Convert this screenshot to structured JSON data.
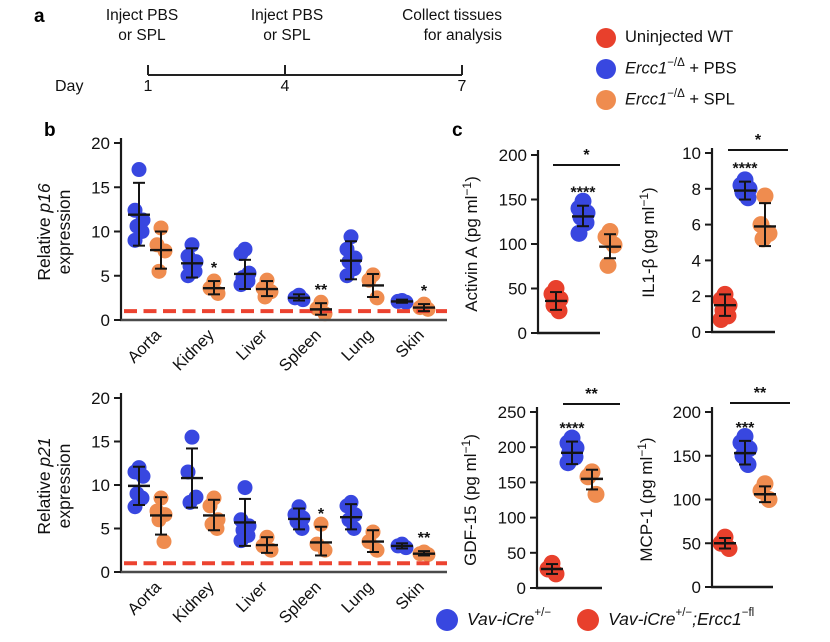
{
  "palette": {
    "red": "#E8402C",
    "blue": "#3847E0",
    "orange": "#EF8C4F",
    "dashed": "#EC4330",
    "axis": "#1a1a1a",
    "error_bar": "#141414"
  },
  "panel_a": {
    "label": "a",
    "events": [
      {
        "line1": "Inject PBS",
        "line2": "or SPL"
      },
      {
        "line1": "Inject PBS",
        "line2": "or SPL"
      },
      {
        "line1": "Collect tissues",
        "line2": "for analysis"
      }
    ],
    "day_label": "Day",
    "days": [
      "1",
      "4",
      "7"
    ]
  },
  "panel_b_label": "b",
  "panel_c_label": "c",
  "legend_top": {
    "items": [
      {
        "color": "red",
        "text": "Uninjected WT"
      },
      {
        "color": "blue",
        "italic": "Ercc1",
        "sup": "−/Δ",
        "rest": " + PBS"
      },
      {
        "color": "orange",
        "italic": "Ercc1",
        "sup": "−/Δ",
        "rest": " + SPL"
      }
    ]
  },
  "legend_bottom": {
    "items": [
      {
        "color": "blue",
        "italic": "Vav-iCre",
        "sup": "+/−",
        "mid": "",
        "italic2": "",
        "sup2": ""
      },
      {
        "color": "red",
        "italic": "Vav-iCre",
        "sup": "+/−",
        "mid": ";",
        "italic2": "Ercc1",
        "sup2": "−fl"
      }
    ]
  },
  "chart_data": [
    {
      "id": "p16",
      "type": "scatter",
      "ylabel": {
        "plain": "Relative ",
        "italic": "p16",
        "line2": "expression"
      },
      "ylim": [
        0,
        20
      ],
      "yticks": [
        0,
        5,
        10,
        15,
        20
      ],
      "baseline": 1,
      "categories": [
        "Aorta",
        "Kidney",
        "Liver",
        "Spleen",
        "Lung",
        "Skin"
      ],
      "series": [
        {
          "name": "Ercc1−/Δ + PBS",
          "color": "blue",
          "data": [
            {
              "values": [
                17,
                12.4,
                11.3,
                10.6,
                10,
                9
              ],
              "mean": 11.9,
              "lo": 8.4,
              "hi": 15.5,
              "sig": ""
            },
            {
              "values": [
                8.5,
                7.2,
                6.6,
                6.1,
                5.5,
                5
              ],
              "mean": 6.4,
              "lo": 4.8,
              "hi": 8.1,
              "sig": ""
            },
            {
              "values": [
                8,
                7.5,
                5.3,
                4.8,
                4.4,
                4
              ],
              "mean": 5.2,
              "lo": 3.5,
              "hi": 6.8,
              "sig": ""
            },
            {
              "values": [
                2.8,
                2.5,
                2.3
              ],
              "mean": 2.5,
              "lo": 2.2,
              "hi": 2.9,
              "sig": ""
            },
            {
              "values": [
                9.4,
                8,
                7,
                6.6,
                5.8,
                5
              ],
              "mean": 6.7,
              "lo": 4.6,
              "hi": 8.9,
              "sig": ""
            },
            {
              "values": [
                2.2,
                2.1,
                2.0
              ],
              "mean": 2.1,
              "lo": 1.95,
              "hi": 2.3,
              "sig": ""
            }
          ]
        },
        {
          "name": "Ercc1−/Δ + SPL",
          "color": "orange",
          "data": [
            {
              "values": [
                10.4,
                8.5,
                7.8,
                5.5
              ],
              "mean": 7.9,
              "lo": 5.8,
              "hi": 10,
              "sig": ""
            },
            {
              "values": [
                4.4,
                3.6,
                3.0
              ],
              "mean": 3.6,
              "lo": 2.9,
              "hi": 4.4,
              "sig": "*"
            },
            {
              "values": [
                4.5,
                3.6,
                3.2,
                2.6
              ],
              "mean": 3.5,
              "lo": 2.7,
              "hi": 4.4,
              "sig": ""
            },
            {
              "values": [
                2.0,
                1.3,
                0.7
              ],
              "mean": 1.2,
              "lo": 0.6,
              "hi": 1.9,
              "sig": "**"
            },
            {
              "values": [
                5.1,
                4.5,
                2.5
              ],
              "mean": 3.9,
              "lo": 2.6,
              "hi": 5.2,
              "sig": ""
            },
            {
              "values": [
                1.8,
                1.4,
                1.2
              ],
              "mean": 1.4,
              "lo": 1.0,
              "hi": 1.8,
              "sig": "*"
            }
          ]
        }
      ]
    },
    {
      "id": "p21",
      "type": "scatter",
      "ylabel": {
        "plain": "Relative ",
        "italic": "p21",
        "line2": "expression"
      },
      "ylim": [
        0,
        20
      ],
      "yticks": [
        0,
        5,
        10,
        15,
        20
      ],
      "baseline": 1,
      "categories": [
        "Aorta",
        "Kidney",
        "Liver",
        "Spleen",
        "Lung",
        "Skin"
      ],
      "series": [
        {
          "name": "Ercc1−/Δ + PBS",
          "color": "blue",
          "data": [
            {
              "values": [
                12,
                11.5,
                11,
                9,
                8.5,
                7.5
              ],
              "mean": 9.9,
              "lo": 7.7,
              "hi": 12.1,
              "sig": ""
            },
            {
              "values": [
                15.5,
                11.5,
                8.6,
                8
              ],
              "mean": 10.8,
              "lo": 7.4,
              "hi": 14.2,
              "sig": ""
            },
            {
              "values": [
                9.7,
                6,
                5.3,
                4.8,
                4.2,
                3.6
              ],
              "mean": 5.7,
              "lo": 3.0,
              "hi": 8.4,
              "sig": ""
            },
            {
              "values": [
                7.5,
                6.6,
                6.2,
                5.8,
                5
              ],
              "mean": 6.1,
              "lo": 4.9,
              "hi": 7.3,
              "sig": ""
            },
            {
              "values": [
                8,
                7.6,
                6.6,
                6,
                5
              ],
              "mean": 6.3,
              "lo": 4.9,
              "hi": 7.8,
              "sig": ""
            },
            {
              "values": [
                3.2,
                3,
                2.8
              ],
              "mean": 3.0,
              "lo": 2.7,
              "hi": 3.3,
              "sig": ""
            }
          ]
        },
        {
          "name": "Ercc1−/Δ + SPL",
          "color": "orange",
          "data": [
            {
              "values": [
                8.5,
                7,
                6.6,
                6,
                3.5
              ],
              "mean": 6.5,
              "lo": 4.3,
              "hi": 8.6,
              "sig": ""
            },
            {
              "values": [
                8.5,
                7.6,
                6,
                5.5,
                5
              ],
              "mean": 6.5,
              "lo": 4.8,
              "hi": 8.3,
              "sig": ""
            },
            {
              "values": [
                4,
                3,
                2.5
              ],
              "mean": 3.1,
              "lo": 2.2,
              "hi": 4.0,
              "sig": ""
            },
            {
              "values": [
                5.5,
                3.2,
                2.5
              ],
              "mean": 3.4,
              "lo": 1.9,
              "hi": 5.2,
              "sig": "*"
            },
            {
              "values": [
                4.6,
                3.5,
                2.5
              ],
              "mean": 3.5,
              "lo": 2.3,
              "hi": 4.8,
              "sig": ""
            },
            {
              "values": [
                2.3,
                2.1,
                2.0
              ],
              "mean": 2.1,
              "lo": 1.9,
              "hi": 2.4,
              "sig": "**"
            }
          ]
        }
      ]
    },
    {
      "id": "activin",
      "type": "scatter",
      "ylabel": {
        "pre": "Activin A (pg ml",
        "sup": "−1",
        "post": ")"
      },
      "ylim": [
        0,
        200
      ],
      "yticks": [
        0,
        50,
        100,
        150,
        200
      ],
      "sig_bar": "*",
      "groups": [
        {
          "color": "red",
          "values": [
            50,
            44,
            38,
            31,
            25
          ],
          "mean": 36,
          "lo": 26,
          "hi": 46,
          "sig": ""
        },
        {
          "color": "blue",
          "values": [
            148,
            140,
            135,
            130,
            124,
            112
          ],
          "mean": 131,
          "lo": 120,
          "hi": 143,
          "sig": "****"
        },
        {
          "color": "orange",
          "values": [
            114,
            108,
            99,
            76
          ],
          "mean": 97,
          "lo": 84,
          "hi": 111,
          "sig": ""
        }
      ]
    },
    {
      "id": "il1b",
      "type": "scatter",
      "ylabel": {
        "pre": "IL1-β (pg ml",
        "sup": "−1",
        "post": ")"
      },
      "ylim": [
        0,
        10
      ],
      "yticks": [
        0,
        2,
        4,
        6,
        8,
        10
      ],
      "sig_bar": "*",
      "groups": [
        {
          "color": "red",
          "values": [
            2.1,
            1.8,
            1.5,
            1.2,
            0.9,
            0.7
          ],
          "mean": 1.5,
          "lo": 0.9,
          "hi": 2.1,
          "sig": ""
        },
        {
          "color": "blue",
          "values": [
            8.5,
            8.2,
            8.0,
            7.8,
            7.5
          ],
          "mean": 7.9,
          "lo": 7.4,
          "hi": 8.4,
          "sig": "****"
        },
        {
          "color": "orange",
          "values": [
            7.6,
            6.0,
            5.5,
            5.2
          ],
          "mean": 5.9,
          "lo": 4.8,
          "hi": 7.2,
          "sig": ""
        }
      ]
    },
    {
      "id": "gdf15",
      "type": "scatter",
      "ylabel": {
        "pre": "GDF-15 (pg ml",
        "sup": "−1",
        "post": ")"
      },
      "ylim": [
        0,
        250
      ],
      "yticks": [
        0,
        50,
        100,
        150,
        200,
        250
      ],
      "sig_bar": "**",
      "groups": [
        {
          "color": "red",
          "values": [
            35,
            27,
            20
          ],
          "mean": 27,
          "lo": 20,
          "hi": 34,
          "sig": ""
        },
        {
          "color": "blue",
          "values": [
            213,
            206,
            199,
            193,
            186,
            178
          ],
          "mean": 192,
          "lo": 176,
          "hi": 208,
          "sig": "****"
        },
        {
          "color": "orange",
          "values": [
            165,
            158,
            133
          ],
          "mean": 155,
          "lo": 140,
          "hi": 168,
          "sig": ""
        }
      ]
    },
    {
      "id": "mcp1",
      "type": "scatter",
      "ylabel": {
        "pre": "MCP-1 (pg ml",
        "sup": "−1",
        "post": ")"
      },
      "ylim": [
        0,
        200
      ],
      "yticks": [
        0,
        50,
        100,
        150,
        200
      ],
      "sig_bar": "**",
      "groups": [
        {
          "color": "red",
          "values": [
            57,
            50,
            44
          ],
          "mean": 50,
          "lo": 44,
          "hi": 56,
          "sig": ""
        },
        {
          "color": "blue",
          "values": [
            172,
            165,
            158,
            150,
            140
          ],
          "mean": 153,
          "lo": 140,
          "hi": 167,
          "sig": "***"
        },
        {
          "color": "orange",
          "values": [
            118,
            110,
            100
          ],
          "mean": 106,
          "lo": 97,
          "hi": 115,
          "sig": ""
        }
      ]
    }
  ]
}
